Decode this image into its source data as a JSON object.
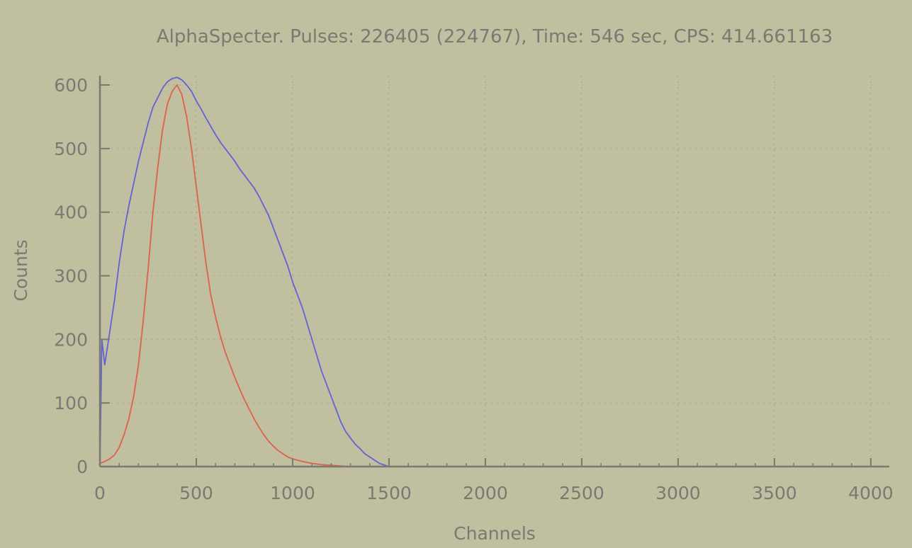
{
  "chart_data": {
    "type": "line",
    "title": "AlphaSpecter. Pulses: 226405 (224767), Time: 546 sec, CPS: 414.661163",
    "xlabel": "Channels",
    "ylabel": "Counts",
    "xlim": [
      0,
      4096
    ],
    "ylim": [
      0,
      620
    ],
    "x_ticks": [
      0,
      500,
      1000,
      1500,
      2000,
      2500,
      3000,
      3500,
      4000
    ],
    "y_ticks": [
      0,
      100,
      200,
      300,
      400,
      500,
      600
    ],
    "grid": true,
    "series": [
      {
        "color": "#6262d6",
        "x": [
          0,
          10,
          25,
          50,
          75,
          100,
          125,
          150,
          175,
          200,
          225,
          250,
          275,
          300,
          325,
          350,
          375,
          400,
          425,
          450,
          475,
          500,
          525,
          550,
          575,
          600,
          625,
          650,
          675,
          700,
          725,
          750,
          775,
          800,
          825,
          850,
          875,
          900,
          925,
          950,
          975,
          1000,
          1025,
          1050,
          1075,
          1100,
          1125,
          1150,
          1175,
          1200,
          1225,
          1250,
          1275,
          1300,
          1325,
          1350,
          1375,
          1400,
          1425,
          1450,
          1500,
          2000,
          2500,
          3000,
          3500,
          4096
        ],
        "y": [
          0,
          200,
          160,
          210,
          260,
          320,
          370,
          410,
          445,
          480,
          510,
          540,
          565,
          580,
          595,
          605,
          610,
          612,
          608,
          600,
          590,
          575,
          562,
          548,
          535,
          522,
          510,
          500,
          490,
          480,
          468,
          458,
          448,
          438,
          425,
          410,
          395,
          375,
          355,
          335,
          315,
          290,
          270,
          250,
          225,
          200,
          175,
          150,
          130,
          110,
          90,
          70,
          55,
          45,
          35,
          28,
          20,
          15,
          10,
          5,
          0,
          0,
          0,
          0,
          0,
          0
        ]
      },
      {
        "color": "#e0604e",
        "x": [
          0,
          25,
          50,
          75,
          100,
          125,
          150,
          175,
          200,
          225,
          250,
          275,
          300,
          325,
          350,
          375,
          400,
          425,
          450,
          475,
          500,
          525,
          550,
          575,
          600,
          625,
          650,
          675,
          700,
          725,
          750,
          775,
          800,
          825,
          850,
          875,
          900,
          925,
          950,
          975,
          1000,
          1050,
          1100,
          1150,
          1200,
          1250,
          1300,
          1350,
          1400,
          1500,
          2000,
          2500,
          3000,
          3500,
          4096
        ],
        "y": [
          5,
          8,
          12,
          18,
          30,
          50,
          75,
          110,
          160,
          230,
          310,
          400,
          470,
          530,
          570,
          590,
          600,
          585,
          550,
          500,
          440,
          380,
          320,
          270,
          235,
          205,
          180,
          160,
          140,
          122,
          105,
          90,
          75,
          62,
          50,
          40,
          32,
          25,
          20,
          15,
          12,
          8,
          5,
          3,
          2,
          1,
          0,
          0,
          0,
          0,
          0,
          0,
          0,
          0,
          0
        ]
      }
    ]
  }
}
